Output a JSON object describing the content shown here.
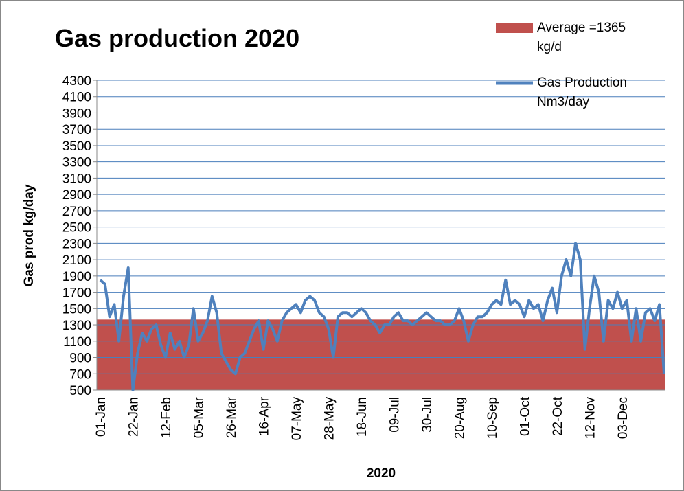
{
  "chart_data": {
    "type": "line",
    "title": "Gas production 2020",
    "y_label": "Gas prod kg/day",
    "x_label": "2020",
    "average": {
      "name": "Average =1365 kg/d",
      "value": 1365,
      "color": "#c0504d"
    },
    "ylim": [
      500,
      4300
    ],
    "yticks": [
      500,
      700,
      900,
      1100,
      1300,
      1500,
      1700,
      1900,
      2100,
      2300,
      2500,
      2700,
      2900,
      3100,
      3300,
      3500,
      3700,
      3900,
      4100,
      4300
    ],
    "grid": true,
    "legend": "top-right",
    "categories": [
      "01-Jan",
      null,
      null,
      null,
      null,
      null,
      null,
      "22-Jan",
      null,
      null,
      null,
      null,
      null,
      null,
      "12-Feb",
      null,
      null,
      null,
      null,
      null,
      null,
      "05-Mar",
      null,
      null,
      null,
      null,
      null,
      null,
      "26-Mar",
      null,
      null,
      null,
      null,
      null,
      null,
      "16-Apr",
      null,
      null,
      null,
      null,
      null,
      null,
      "07-May",
      null,
      null,
      null,
      null,
      null,
      null,
      "28-May",
      null,
      null,
      null,
      null,
      null,
      null,
      "18-Jun",
      null,
      null,
      null,
      null,
      null,
      null,
      "09-Jul",
      null,
      null,
      null,
      null,
      null,
      null,
      "30-Jul",
      null,
      null,
      null,
      null,
      null,
      null,
      "20-Aug",
      null,
      null,
      null,
      null,
      null,
      null,
      "10-Sep",
      null,
      null,
      null,
      null,
      null,
      null,
      "01-Oct",
      null,
      null,
      null,
      null,
      null,
      null,
      "22-Oct",
      null,
      null,
      null,
      null,
      null,
      null,
      "12-Nov",
      null,
      null,
      null,
      null,
      null,
      null,
      "03-Dec",
      null,
      null,
      null,
      null,
      null,
      null,
      null,
      null,
      null
    ],
    "series": [
      {
        "name": "Gas Production Nm3/day",
        "color": "#4f81bd",
        "values": [
          1850,
          1800,
          1400,
          1550,
          1100,
          1650,
          2000,
          500,
          950,
          1200,
          1100,
          1250,
          1300,
          1050,
          900,
          1200,
          1000,
          1100,
          900,
          1050,
          1500,
          1100,
          1200,
          1350,
          1650,
          1450,
          950,
          850,
          750,
          700,
          900,
          950,
          1100,
          1250,
          1350,
          1000,
          1350,
          1250,
          1100,
          1350,
          1450,
          1500,
          1550,
          1450,
          1600,
          1650,
          1600,
          1450,
          1400,
          1250,
          900,
          1400,
          1450,
          1450,
          1400,
          1450,
          1500,
          1450,
          1350,
          1300,
          1200,
          1300,
          1300,
          1400,
          1450,
          1350,
          1350,
          1300,
          1350,
          1400,
          1450,
          1400,
          1350,
          1350,
          1300,
          1300,
          1350,
          1500,
          1350,
          1100,
          1300,
          1400,
          1400,
          1450,
          1550,
          1600,
          1550,
          1850,
          1550,
          1600,
          1550,
          1400,
          1600,
          1500,
          1550,
          1350,
          1600,
          1750,
          1450,
          1900,
          2100,
          1900,
          2300,
          2100,
          1000,
          1500,
          1900,
          1700,
          1100,
          1600,
          1500,
          1700,
          1500,
          1600,
          1100,
          1500,
          1100,
          1450,
          1500,
          1350,
          1550,
          700
        ]
      }
    ]
  }
}
